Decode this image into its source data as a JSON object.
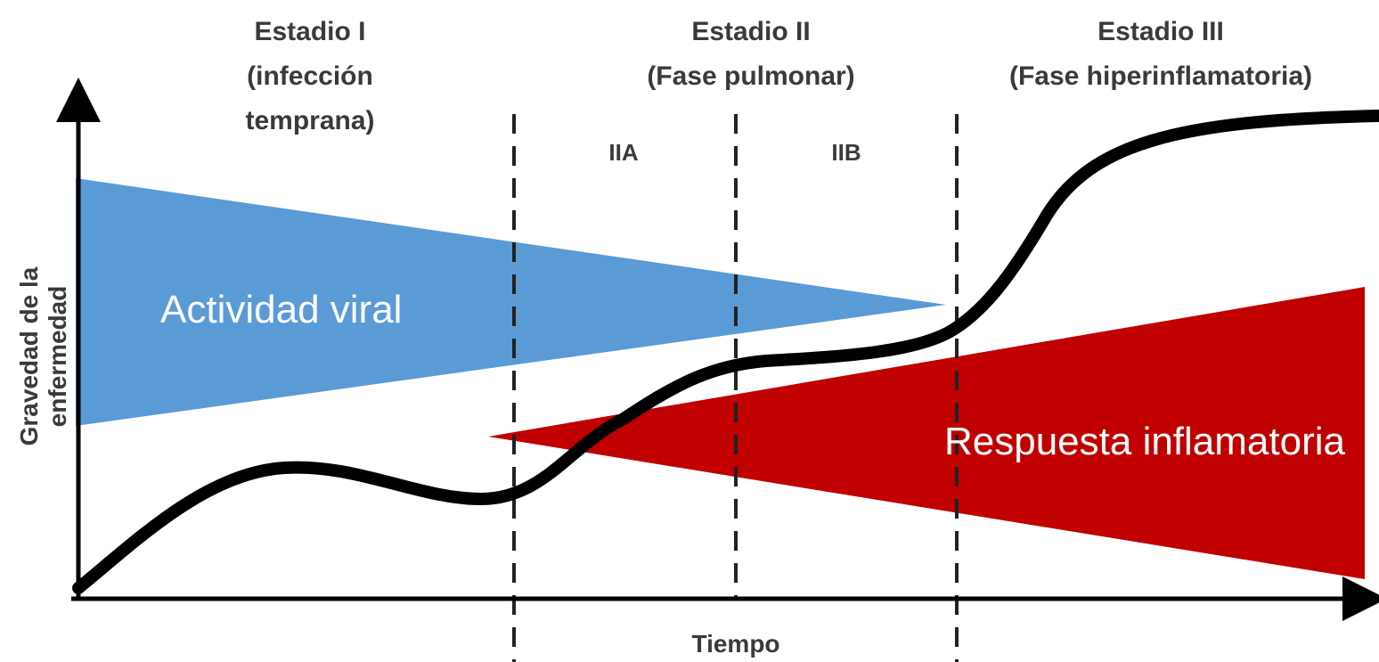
{
  "stages": [
    {
      "title": "Estadio I",
      "desc_line1": "(infección",
      "desc_line2": "temprana)"
    },
    {
      "title": "Estadio II",
      "desc_line1": "(Fase pulmonar)"
    },
    {
      "title": "Estadio III",
      "desc_line1": "(Fase hiperinflamatoria)"
    }
  ],
  "substages": [
    "IIA",
    "IIB"
  ],
  "regions": {
    "viral": {
      "label": "Actividad viral",
      "color": "#5b9bd5"
    },
    "inflammatory": {
      "label": "Respuesta inflamatoria",
      "color": "#c00000"
    }
  },
  "axes": {
    "y_label_line1": "Gravedad de la",
    "y_label_line2": "enfermedad",
    "x_label": "Tiempo"
  },
  "colors": {
    "severity_curve": "#000000",
    "divider": "#222222",
    "text": "#3a3a3a"
  }
}
